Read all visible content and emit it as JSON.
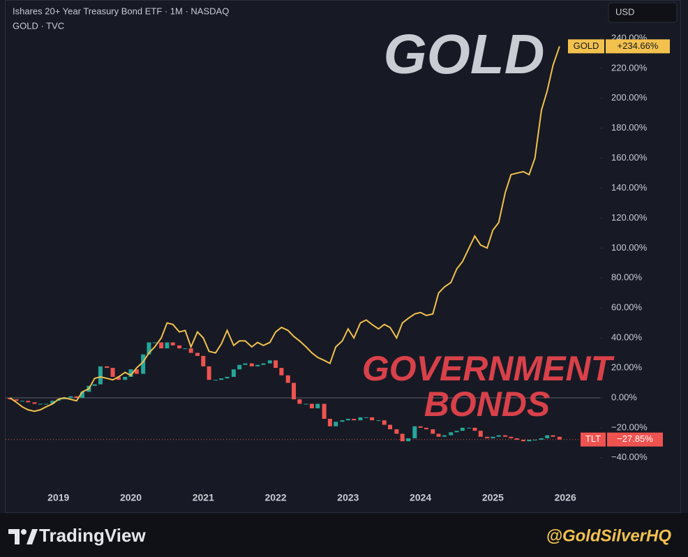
{
  "chart_data": {
    "type": "line",
    "title": "Ishares 20+ Year Treasury Bond ETF · 1M · NASDAQ",
    "subtitle": "GOLD · TVC",
    "currency": "USD",
    "annotations": [
      "GOLD",
      "GOVERNMENT",
      "BONDS"
    ],
    "brand": "TradingView",
    "handle": "@GoldSilverHQ",
    "xlim": [
      2018.27,
      2026.48
    ],
    "xticks": [
      2019,
      2020,
      2021,
      2022,
      2023,
      2024,
      2025,
      2026
    ],
    "ylim": [
      -60.6,
      265.6
    ],
    "yticks": [
      {
        "value": -40,
        "label": "−40.00%"
      },
      {
        "value": -20,
        "label": "−20.00%"
      },
      {
        "value": 0,
        "label": "0.00%"
      },
      {
        "value": 20,
        "label": "20.00%"
      },
      {
        "value": 40,
        "label": "40.00%"
      },
      {
        "value": 60,
        "label": "60.00%"
      },
      {
        "value": 80,
        "label": "80.00%"
      },
      {
        "value": 100,
        "label": "100.00%"
      },
      {
        "value": 120,
        "label": "120.00%"
      },
      {
        "value": 140,
        "label": "140.00%"
      },
      {
        "value": 160,
        "label": "160.00%"
      },
      {
        "value": 180,
        "label": "180.00%"
      },
      {
        "value": 200,
        "label": "200.00%"
      },
      {
        "value": 220,
        "label": "220.00%"
      },
      {
        "value": 240,
        "label": "240.00%"
      }
    ],
    "x": [
      2018.33,
      2018.42,
      2018.5,
      2018.58,
      2018.67,
      2018.75,
      2018.83,
      2018.92,
      2019.0,
      2019.08,
      2019.17,
      2019.25,
      2019.33,
      2019.42,
      2019.5,
      2019.58,
      2019.67,
      2019.75,
      2019.83,
      2019.92,
      2020.0,
      2020.08,
      2020.17,
      2020.25,
      2020.33,
      2020.42,
      2020.5,
      2020.58,
      2020.67,
      2020.75,
      2020.83,
      2020.92,
      2021.0,
      2021.08,
      2021.17,
      2021.25,
      2021.33,
      2021.42,
      2021.5,
      2021.58,
      2021.67,
      2021.75,
      2021.83,
      2021.92,
      2022.0,
      2022.08,
      2022.17,
      2022.25,
      2022.33,
      2022.42,
      2022.5,
      2022.58,
      2022.67,
      2022.75,
      2022.83,
      2022.92,
      2023.0,
      2023.08,
      2023.17,
      2023.25,
      2023.33,
      2023.42,
      2023.5,
      2023.58,
      2023.67,
      2023.75,
      2023.83,
      2023.92,
      2024.0,
      2024.08,
      2024.17,
      2024.25,
      2024.33,
      2024.42,
      2024.5,
      2024.58,
      2024.67,
      2024.75,
      2024.83,
      2024.92,
      2025.0,
      2025.08,
      2025.17,
      2025.25,
      2025.33,
      2025.42,
      2025.5,
      2025.58,
      2025.67,
      2025.75,
      2025.83,
      2025.92
    ],
    "series": [
      {
        "name": "GOLD",
        "type": "line",
        "color": "#f2c14e",
        "price_tag": "+234.66%",
        "values": [
          0,
          -3,
          -6,
          -8,
          -9,
          -8,
          -6,
          -4,
          -1,
          0,
          -1,
          -2,
          4,
          6,
          13,
          14,
          13,
          12,
          14,
          17,
          15,
          20,
          24,
          30,
          34,
          40,
          50,
          49,
          44,
          45,
          34,
          44,
          40,
          31,
          30,
          36,
          45,
          35,
          38,
          38,
          34,
          37,
          35,
          37,
          44,
          47,
          45,
          41,
          38,
          34,
          30,
          27,
          25,
          23,
          34,
          38,
          46,
          40,
          50,
          52,
          49,
          46,
          49,
          47,
          40,
          50,
          53,
          56,
          57,
          55,
          56,
          70,
          74,
          77,
          86,
          91,
          100,
          108,
          102,
          100,
          112,
          117,
          137,
          149,
          150,
          151,
          149,
          160,
          192,
          205,
          222,
          234.66
        ]
      },
      {
        "name": "TLT",
        "type": "candlestick",
        "up_color": "#26a69a",
        "down_color": "#ef5350",
        "price_tag": "−27.85%",
        "open": [
          0,
          -1,
          -2,
          -2,
          -3,
          -4,
          -4,
          -4,
          -2,
          -1,
          0,
          1,
          0,
          4,
          8,
          9,
          21,
          20,
          14,
          12,
          14,
          19,
          16,
          29,
          37,
          37,
          33,
          37,
          35,
          33,
          33,
          30,
          28,
          21,
          12,
          12,
          13,
          14,
          19,
          22,
          23,
          21,
          22,
          23,
          25,
          20,
          15,
          10,
          -1,
          -4,
          -4,
          -7,
          -4,
          -14,
          -19,
          -16,
          -15,
          -14,
          -15,
          -13,
          -13,
          -15,
          -15,
          -18,
          -21,
          -24,
          -29,
          -27,
          -19,
          -20,
          -21,
          -24,
          -26,
          -25,
          -23,
          -22,
          -20,
          -20,
          -22,
          -26,
          -27,
          -26,
          -25,
          -26,
          -27,
          -28,
          -29,
          -28,
          -28,
          -27,
          -25,
          -26
        ],
        "close": [
          -1,
          -2,
          -2,
          -3,
          -4,
          -4,
          -4,
          -2,
          -1,
          0,
          1,
          0,
          4,
          8,
          9,
          21,
          20,
          14,
          12,
          14,
          19,
          16,
          29,
          37,
          37,
          33,
          37,
          35,
          33,
          33,
          30,
          28,
          21,
          12,
          12,
          13,
          14,
          19,
          22,
          23,
          21,
          22,
          23,
          25,
          20,
          15,
          10,
          -1,
          -4,
          -4,
          -7,
          -4,
          -14,
          -19,
          -16,
          -15,
          -14,
          -15,
          -13,
          -13,
          -15,
          -15,
          -18,
          -21,
          -24,
          -29,
          -27,
          -19,
          -20,
          -21,
          -24,
          -26,
          -25,
          -23,
          -22,
          -20,
          -20,
          -22,
          -26,
          -27,
          -26,
          -25,
          -26,
          -27,
          -28,
          -29,
          -28,
          -28,
          -27,
          -25,
          -26,
          -27.85
        ]
      }
    ]
  }
}
